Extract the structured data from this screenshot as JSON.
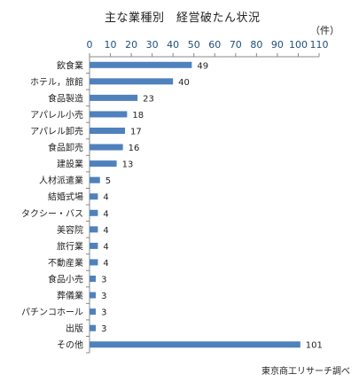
{
  "chart_data": {
    "type": "bar",
    "orientation": "horizontal",
    "title": "主な業種別　経営破たん状況",
    "unit_label": "（件）",
    "source": "東京商工リサーチ調べ",
    "categories": [
      "飲食業",
      "ホテル，旅館",
      "食品製造",
      "アパレル小売",
      "アパレル卸売",
      "食品卸売",
      "建設業",
      "人材派遣業",
      "結婚式場",
      "タクシー・バス",
      "美容院",
      "旅行業",
      "不動産業",
      "食品小売",
      "葬儀業",
      "パチンコホール",
      "出版",
      "その他"
    ],
    "values": [
      49,
      40,
      23,
      18,
      17,
      16,
      13,
      5,
      4,
      4,
      4,
      4,
      4,
      3,
      3,
      3,
      3,
      101
    ],
    "xlim": [
      0,
      110
    ],
    "xticks": [
      0,
      10,
      20,
      30,
      40,
      50,
      60,
      70,
      80,
      90,
      100,
      110
    ],
    "grid": false,
    "data_labels": true,
    "bar_color": "#4f81bd"
  }
}
